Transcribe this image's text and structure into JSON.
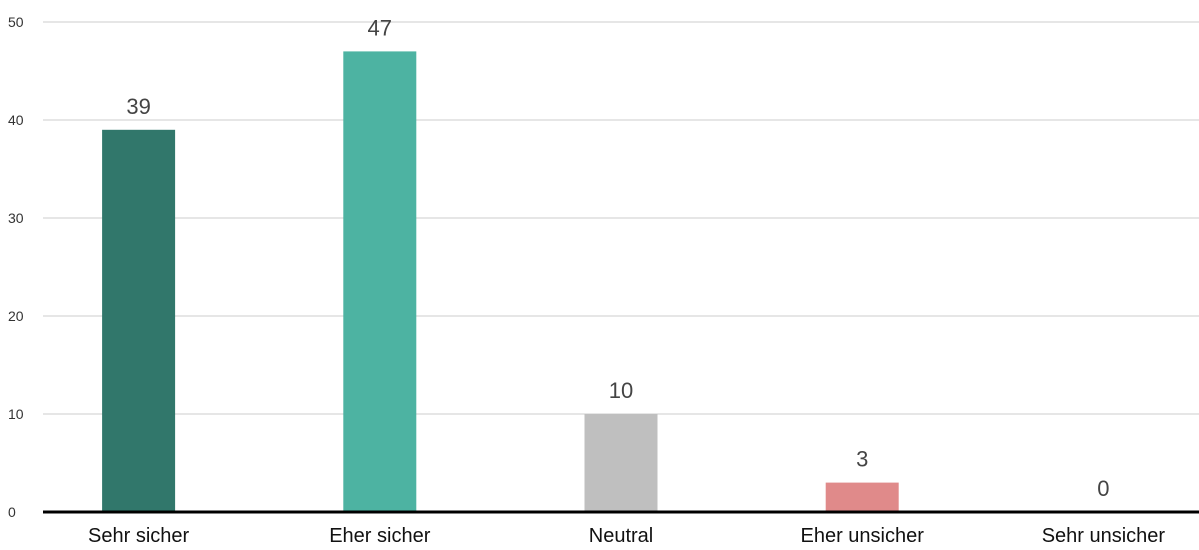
{
  "chart_data": {
    "type": "bar",
    "categories": [
      "Sehr sicher",
      "Eher sicher",
      "Neutral",
      "Eher unsicher",
      "Sehr unsicher"
    ],
    "values": [
      39,
      47,
      10,
      3,
      0
    ],
    "data_labels": [
      "39",
      "47",
      "10",
      "3",
      "0"
    ],
    "colors": [
      "#31776b",
      "#4db3a2",
      "#bfbfbf",
      "#e08a8a",
      "#e08a8a"
    ],
    "ylim": [
      0,
      50
    ],
    "yticks": [
      0,
      10,
      20,
      30,
      40,
      50
    ],
    "ytick_labels": [
      "0",
      "10",
      "20",
      "30",
      "40",
      "50"
    ],
    "grid": true,
    "title": "",
    "xlabel": "",
    "ylabel": ""
  }
}
